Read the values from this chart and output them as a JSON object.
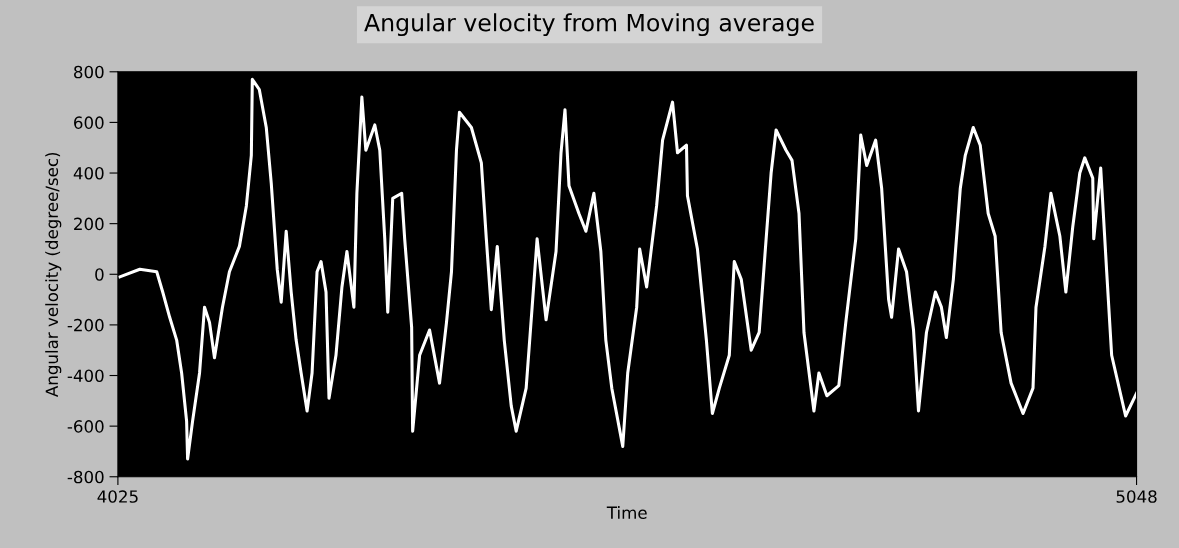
{
  "chart_data": {
    "type": "line",
    "title": "Angular velocity from Moving average",
    "xlabel": "Time",
    "ylabel": "Angular velocity (degree/sec)",
    "xlim": [
      4025,
      5048
    ],
    "xticks": [
      4025,
      5048
    ],
    "ylim": [
      -800,
      800
    ],
    "yticks": [
      -800,
      -600,
      -400,
      -200,
      0,
      200,
      400,
      600,
      800
    ],
    "grid": false,
    "marker": "none",
    "line_style": "solid",
    "series": [
      {
        "color": "#ffffff",
        "x": [
          4027,
          4047,
          4064,
          4070,
          4077,
          4084,
          4089,
          4094,
          4095,
          4100,
          4107,
          4112,
          4117,
          4122,
          4130,
          4137,
          4147,
          4154,
          4159,
          4160,
          4167,
          4174,
          4179,
          4185,
          4189,
          4194,
          4199,
          4204,
          4209,
          4215,
          4220,
          4225,
          4229,
          4234,
          4237,
          4244,
          4250,
          4255,
          4262,
          4265,
          4270,
          4274,
          4283,
          4288,
          4293,
          4296,
          4301,
          4310,
          4313,
          4320,
          4321,
          4328,
          4338,
          4348,
          4355,
          4360,
          4365,
          4368,
          4380,
          4390,
          4395,
          4400,
          4406,
          4413,
          4420,
          4425,
          4435,
          4441,
          4446,
          4455,
          4465,
          4470,
          4474,
          4478,
          4488,
          4495,
          4503,
          4510,
          4515,
          4521,
          4532,
          4537,
          4546,
          4549,
          4556,
          4566,
          4572,
          4582,
          4587,
          4596,
          4597,
          4607,
          4616,
          4622,
          4629,
          4639,
          4644,
          4651,
          4661,
          4669,
          4676,
          4681,
          4686,
          4696,
          4702,
          4709,
          4714,
          4724,
          4729,
          4737,
          4749,
          4756,
          4766,
          4771,
          4777,
          4786,
          4792,
          4799,
          4802,
          4809,
          4817,
          4824,
          4829,
          4837,
          4846,
          4852,
          4857,
          4864,
          4871,
          4876,
          4884,
          4891,
          4899,
          4906,
          4912,
          4922,
          4934,
          4944,
          4947,
          4956,
          4962,
          4971,
          4977,
          4984,
          4991,
          4996,
          5004,
          5005,
          5012,
          5018,
          5023,
          5037,
          5048
        ],
        "values": [
          -10,
          20,
          10,
          -70,
          -170,
          -260,
          -390,
          -580,
          -730,
          -580,
          -390,
          -130,
          -190,
          -330,
          -130,
          10,
          110,
          270,
          470,
          770,
          730,
          580,
          360,
          20,
          -110,
          170,
          -70,
          -260,
          -390,
          -540,
          -390,
          10,
          50,
          -70,
          -490,
          -320,
          -50,
          90,
          -130,
          320,
          700,
          490,
          590,
          490,
          140,
          -150,
          300,
          320,
          140,
          -210,
          -620,
          -320,
          -220,
          -430,
          -190,
          10,
          490,
          640,
          580,
          440,
          140,
          -140,
          110,
          -260,
          -520,
          -620,
          -450,
          -130,
          140,
          -180,
          90,
          480,
          650,
          350,
          240,
          170,
          320,
          90,
          -260,
          -450,
          -680,
          -390,
          -130,
          100,
          -50,
          270,
          530,
          680,
          480,
          510,
          310,
          100,
          -260,
          -550,
          -450,
          -320,
          50,
          -20,
          -300,
          -230,
          140,
          400,
          570,
          490,
          450,
          240,
          -230,
          -540,
          -390,
          -480,
          -440,
          -190,
          140,
          550,
          430,
          530,
          340,
          -100,
          -170,
          100,
          10,
          -220,
          -540,
          -230,
          -70,
          -130,
          -250,
          -20,
          340,
          470,
          580,
          510,
          240,
          150,
          -230,
          -430,
          -550,
          -450,
          -130,
          110,
          320,
          150,
          -70,
          190,
          400,
          460,
          380,
          140,
          420,
          10,
          -320,
          -560,
          -470
        ]
      }
    ]
  }
}
